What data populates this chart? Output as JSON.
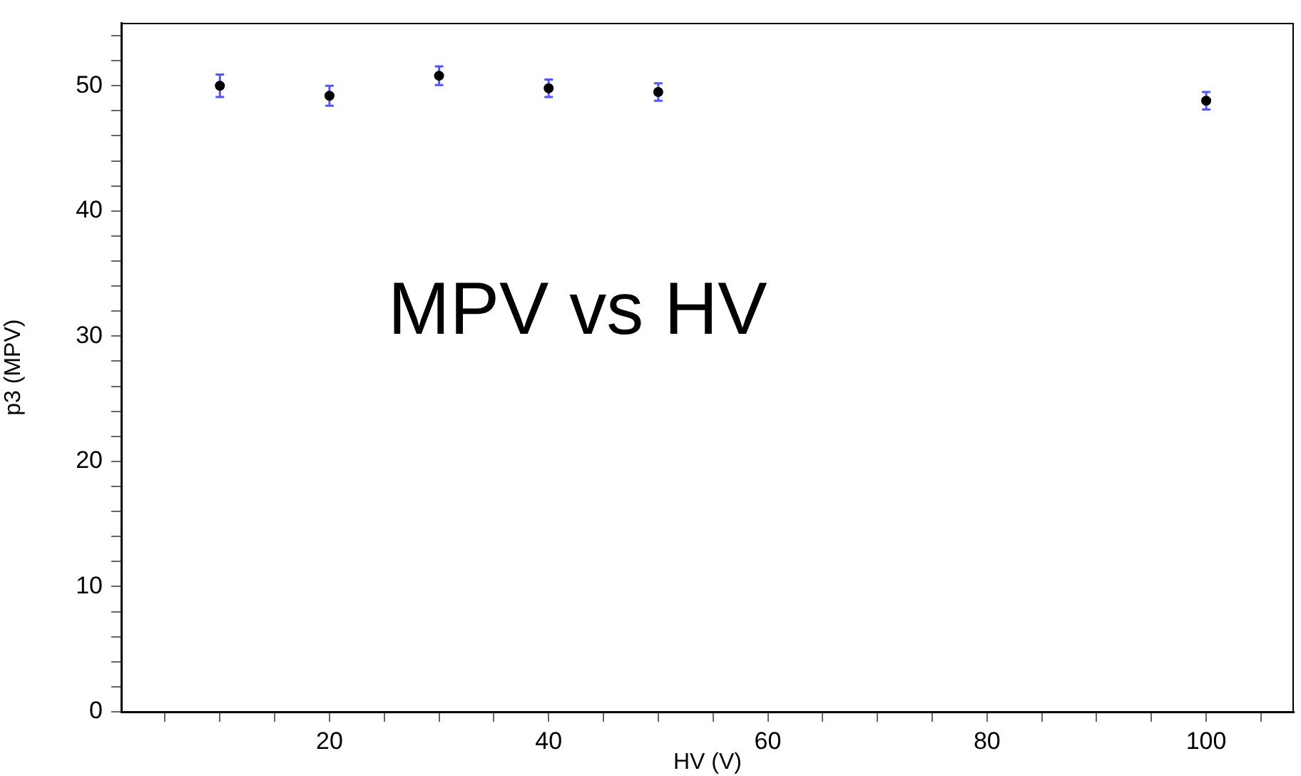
{
  "chart_data": {
    "type": "scatter",
    "xlabel": "HV (V)",
    "ylabel": "p3 (MPV)",
    "annotations": [
      "MPV vs HV"
    ],
    "x": [
      10,
      20,
      30,
      40,
      50,
      100
    ],
    "series": [
      {
        "color": "#000000",
        "values": [
          50.0,
          49.2,
          50.8,
          49.8,
          49.5,
          48.8
        ],
        "errors": [
          0.9,
          0.8,
          0.75,
          0.7,
          0.7,
          0.7
        ]
      }
    ],
    "marker": "circle",
    "grid": false,
    "legend": false,
    "xlim": [
      1,
      108
    ],
    "xticks": [
      {
        "value": 5,
        "label": null
      },
      {
        "value": 10,
        "label": null
      },
      {
        "value": 15,
        "label": null
      },
      20,
      {
        "value": 25,
        "label": null
      },
      {
        "value": 30,
        "label": null
      },
      {
        "value": 35,
        "label": null
      },
      40,
      {
        "value": 45,
        "label": null
      },
      {
        "value": 50,
        "label": null
      },
      {
        "value": 55,
        "label": null
      },
      60,
      {
        "value": 65,
        "label": null
      },
      {
        "value": 70,
        "label": null
      },
      {
        "value": 75,
        "label": null
      },
      80,
      {
        "value": 85,
        "label": null
      },
      {
        "value": 90,
        "label": null
      },
      {
        "value": 95,
        "label": null
      },
      100,
      {
        "value": 105,
        "label": null
      }
    ],
    "ylim": [
      0,
      55
    ],
    "yticks": [
      0,
      {
        "value": 2,
        "label": null
      },
      {
        "value": 4,
        "label": null
      },
      {
        "value": 6,
        "label": null
      },
      {
        "value": 8,
        "label": null
      },
      10,
      {
        "value": 12,
        "label": null
      },
      {
        "value": 14,
        "label": null
      },
      {
        "value": 16,
        "label": null
      },
      {
        "value": 18,
        "label": null
      },
      20,
      {
        "value": 22,
        "label": null
      },
      {
        "value": 24,
        "label": null
      },
      {
        "value": 26,
        "label": null
      },
      {
        "value": 28,
        "label": null
      },
      30,
      {
        "value": 32,
        "label": null
      },
      {
        "value": 34,
        "label": null
      },
      {
        "value": 36,
        "label": null
      },
      {
        "value": 38,
        "label": null
      },
      40,
      {
        "value": 42,
        "label": null
      },
      {
        "value": 44,
        "label": null
      },
      {
        "value": 46,
        "label": null
      },
      {
        "value": 48,
        "label": null
      },
      50,
      {
        "value": 52,
        "label": null
      },
      {
        "value": 54,
        "label": null
      }
    ]
  }
}
